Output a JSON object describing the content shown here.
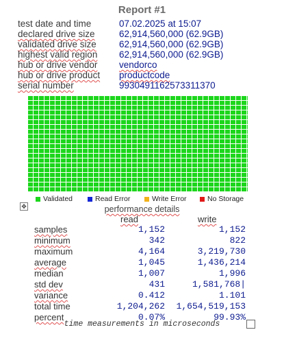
{
  "title": "Report #1",
  "info": [
    {
      "label": "test date and time",
      "value": "07.02.2025  at  15:07"
    },
    {
      "label": "declared drive size",
      "value": "62,914,560,000 (62.9GB)"
    },
    {
      "label": "validated drive size",
      "value": "62,914,560,000 (62.9GB)"
    },
    {
      "label": "highest valid region",
      "value": "62,914,560,000 (62.9GB)"
    },
    {
      "label": "hub or drive vendor",
      "value": "vendorco"
    },
    {
      "label": "hub or drive product",
      "value": "productcode"
    },
    {
      "label": "serial number",
      "value": "9930491162573311370"
    }
  ],
  "region_map": {
    "status": "Validated",
    "color": "#1cd61c"
  },
  "legend": [
    {
      "label": "Validated",
      "color": "#1cd61c"
    },
    {
      "label": "Read Error",
      "color": "#1326d6"
    },
    {
      "label": "Write Error",
      "color": "#f2b21c"
    },
    {
      "label": "No Storage",
      "color": "#e01818"
    }
  ],
  "performance": {
    "title": "performance details",
    "read_header": "read",
    "write_header": "write",
    "rows": [
      {
        "label": "samples",
        "read": "1,152",
        "write": "1,152"
      },
      {
        "label": "minimum",
        "read": "342",
        "write": "822"
      },
      {
        "label": "maximum",
        "read": "4,164",
        "write": "3,219,730"
      },
      {
        "label": "average",
        "read": "1,045",
        "write": "1,436,214"
      },
      {
        "label": "median",
        "read": "1,007",
        "write": "1,996"
      },
      {
        "label": "std dev",
        "read": "431",
        "write": "1,581,768|"
      },
      {
        "label": "variance",
        "read": "0.412",
        "write": "1.101"
      },
      {
        "label": "total time",
        "read": "1,204,262",
        "write": "1,654,519,153"
      },
      {
        "label": "percent",
        "read": "0.07%",
        "write": "99.93%"
      }
    ],
    "footnote": "time measurements in microseconds"
  },
  "icons": {
    "move": "move-handle-icon",
    "checkbox": "checkbox-icon"
  }
}
